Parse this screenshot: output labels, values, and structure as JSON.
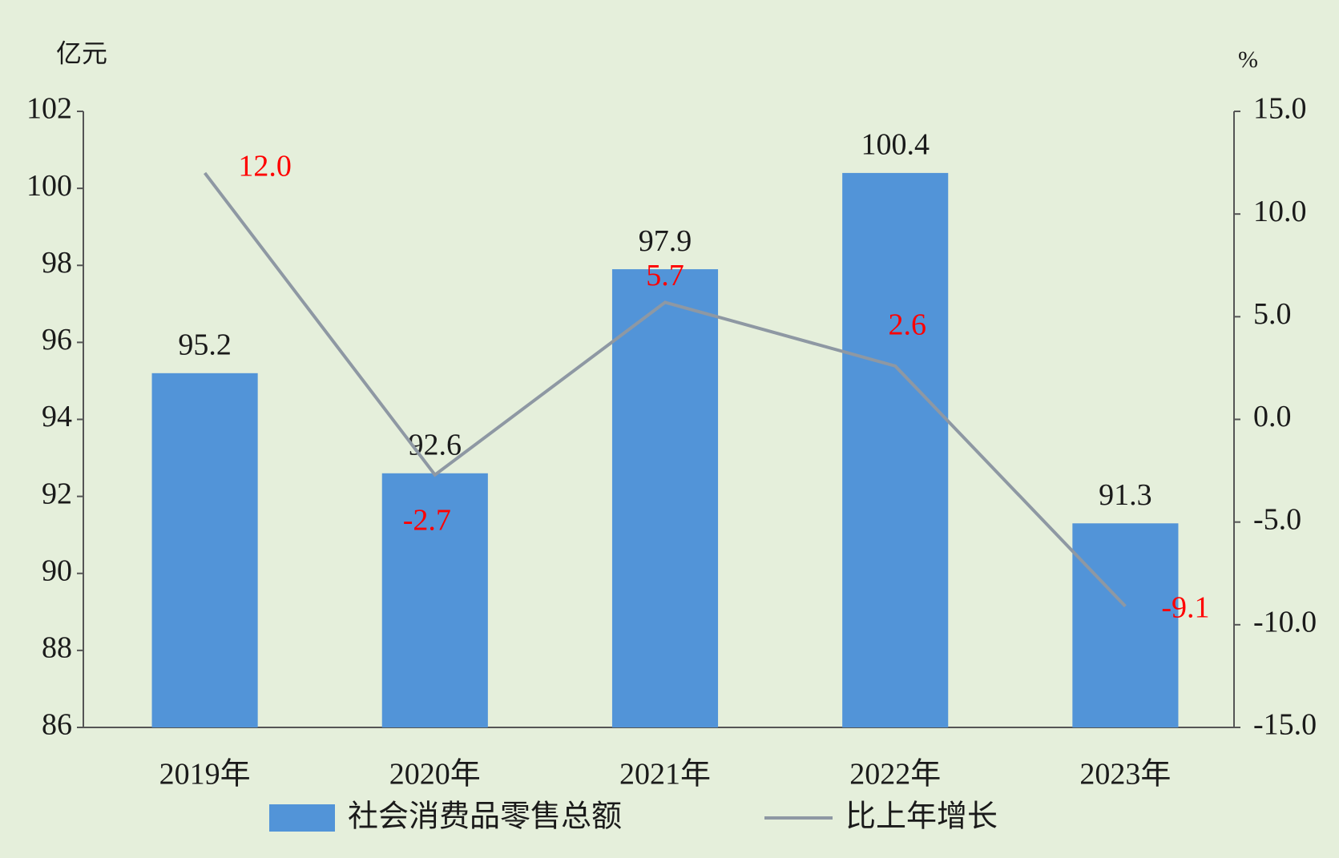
{
  "chart_data": {
    "type": "bar",
    "y_unit": "亿元",
    "y2_unit": "%",
    "categories": [
      "2019年",
      "2020年",
      "2021年",
      "2022年",
      "2023年"
    ],
    "series": [
      {
        "name": "社会消费品零售总额",
        "type": "bar",
        "color": "#5294d8",
        "values": [
          95.2,
          92.6,
          97.9,
          100.4,
          91.3
        ]
      },
      {
        "name": "比上年增长",
        "type": "line",
        "axis": "y2",
        "color": "#8e98a3",
        "label_color": "#ff0000",
        "values": [
          12,
          -2.7,
          5.7,
          2.6,
          -9.1
        ],
        "value_labels": [
          "12.0",
          "-2.7",
          "5.7",
          "2.6",
          "-9.1"
        ]
      }
    ],
    "ylim": [
      86,
      102
    ],
    "yticks": [
      86,
      88,
      90,
      92,
      94,
      96,
      98,
      100,
      102
    ],
    "y2lim": [
      -15,
      15
    ],
    "y2ticks": [
      {
        "value": -15,
        "label": "-15.0"
      },
      {
        "value": -10,
        "label": "-10.0"
      },
      {
        "value": -5,
        "label": "-5.0"
      },
      {
        "value": 0,
        "label": "0.0"
      },
      {
        "value": 5,
        "label": "5.0"
      },
      {
        "value": 10,
        "label": "10.0"
      },
      {
        "value": 15,
        "label": "15.0"
      }
    ],
    "grid": false,
    "legend": "bottom"
  }
}
